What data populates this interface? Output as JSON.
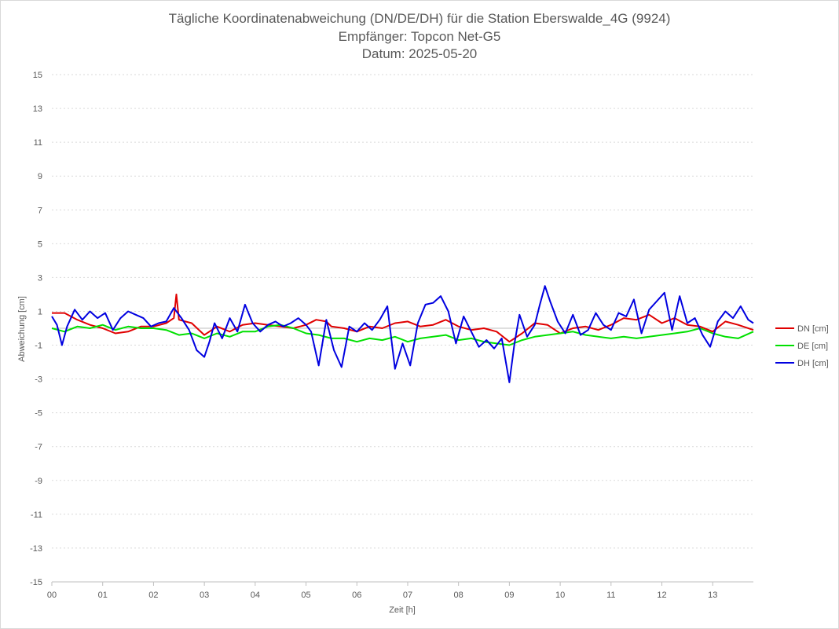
{
  "chart_data": {
    "type": "line",
    "title_lines": [
      "Tägliche Koordinatenabweichung (DN/DE/DH) für die Station Eberswalde_4G (9924)",
      "Empfänger: Topcon Net-G5",
      "Datum: 2025-05-20"
    ],
    "xlabel": "Zeit [h]",
    "ylabel": "Abweichung [cm]",
    "xlim": [
      0,
      13.8
    ],
    "ylim": [
      -15,
      15
    ],
    "x_ticks": [
      "00",
      "01",
      "02",
      "03",
      "04",
      "05",
      "06",
      "07",
      "08",
      "09",
      "10",
      "11",
      "12",
      "13"
    ],
    "y_ticks": [
      15,
      13,
      11,
      9,
      7,
      5,
      3,
      1,
      -1,
      -3,
      -5,
      -7,
      -9,
      -11,
      -13,
      -15
    ],
    "grid": true,
    "legend_position": "right",
    "series": [
      {
        "name": "DN [cm]",
        "color": "#e00000",
        "x": [
          0.0,
          0.25,
          0.5,
          0.75,
          1.0,
          1.25,
          1.5,
          1.75,
          2.0,
          2.25,
          2.4,
          2.45,
          2.5,
          2.75,
          3.0,
          3.25,
          3.5,
          3.75,
          4.0,
          4.25,
          4.5,
          4.75,
          5.0,
          5.2,
          5.4,
          5.5,
          5.75,
          6.0,
          6.25,
          6.5,
          6.75,
          7.0,
          7.25,
          7.5,
          7.75,
          8.0,
          8.25,
          8.5,
          8.75,
          9.0,
          9.25,
          9.5,
          9.75,
          10.0,
          10.25,
          10.5,
          10.75,
          11.0,
          11.25,
          11.5,
          11.75,
          12.0,
          12.25,
          12.5,
          12.75,
          13.0,
          13.25,
          13.5,
          13.8
        ],
        "y": [
          0.9,
          0.9,
          0.5,
          0.2,
          0.0,
          -0.3,
          -0.2,
          0.1,
          0.1,
          0.3,
          0.6,
          2.0,
          0.5,
          0.3,
          -0.4,
          0.1,
          -0.2,
          0.2,
          0.3,
          0.2,
          0.1,
          0.0,
          0.2,
          0.5,
          0.4,
          0.1,
          0.0,
          -0.2,
          0.1,
          0.0,
          0.3,
          0.4,
          0.1,
          0.2,
          0.5,
          0.1,
          -0.1,
          0.0,
          -0.2,
          -0.8,
          -0.3,
          0.3,
          0.2,
          -0.3,
          0.0,
          0.1,
          -0.1,
          0.2,
          0.6,
          0.5,
          0.8,
          0.3,
          0.6,
          0.2,
          0.1,
          -0.2,
          0.4,
          0.2,
          -0.1
        ]
      },
      {
        "name": "DE [cm]",
        "color": "#00e000",
        "x": [
          0.0,
          0.25,
          0.5,
          0.75,
          1.0,
          1.25,
          1.5,
          1.75,
          2.0,
          2.25,
          2.5,
          2.75,
          3.0,
          3.25,
          3.5,
          3.75,
          4.0,
          4.25,
          4.5,
          4.75,
          5.0,
          5.25,
          5.5,
          5.75,
          6.0,
          6.25,
          6.5,
          6.75,
          7.0,
          7.25,
          7.5,
          7.75,
          8.0,
          8.25,
          8.5,
          8.75,
          9.0,
          9.25,
          9.5,
          9.75,
          10.0,
          10.25,
          10.5,
          10.75,
          11.0,
          11.25,
          11.5,
          11.75,
          12.0,
          12.25,
          12.5,
          12.75,
          13.0,
          13.25,
          13.5,
          13.8
        ],
        "y": [
          0.0,
          -0.2,
          0.1,
          0.0,
          0.2,
          -0.1,
          0.1,
          0.0,
          0.0,
          -0.1,
          -0.4,
          -0.3,
          -0.6,
          -0.3,
          -0.5,
          -0.2,
          -0.2,
          0.1,
          0.2,
          0.0,
          -0.3,
          -0.4,
          -0.6,
          -0.6,
          -0.8,
          -0.6,
          -0.7,
          -0.5,
          -0.8,
          -0.6,
          -0.5,
          -0.4,
          -0.7,
          -0.6,
          -0.8,
          -0.9,
          -1.0,
          -0.7,
          -0.5,
          -0.4,
          -0.3,
          -0.2,
          -0.4,
          -0.5,
          -0.6,
          -0.5,
          -0.6,
          -0.5,
          -0.4,
          -0.3,
          -0.2,
          0.0,
          -0.3,
          -0.5,
          -0.6,
          -0.2
        ]
      },
      {
        "name": "DH [cm]",
        "color": "#0000e0",
        "x": [
          0.0,
          0.1,
          0.2,
          0.3,
          0.45,
          0.6,
          0.75,
          0.9,
          1.05,
          1.2,
          1.35,
          1.5,
          1.65,
          1.8,
          1.95,
          2.1,
          2.25,
          2.4,
          2.55,
          2.7,
          2.85,
          3.0,
          3.1,
          3.2,
          3.35,
          3.5,
          3.65,
          3.8,
          3.95,
          4.1,
          4.25,
          4.4,
          4.55,
          4.7,
          4.85,
          5.0,
          5.1,
          5.25,
          5.4,
          5.55,
          5.7,
          5.85,
          6.0,
          6.15,
          6.3,
          6.45,
          6.6,
          6.75,
          6.9,
          7.05,
          7.2,
          7.35,
          7.5,
          7.65,
          7.8,
          7.95,
          8.1,
          8.25,
          8.4,
          8.55,
          8.7,
          8.85,
          9.0,
          9.1,
          9.2,
          9.35,
          9.5,
          9.6,
          9.7,
          9.8,
          9.95,
          10.1,
          10.25,
          10.4,
          10.55,
          10.7,
          10.85,
          11.0,
          11.15,
          11.3,
          11.45,
          11.6,
          11.75,
          11.9,
          12.05,
          12.2,
          12.35,
          12.5,
          12.65,
          12.8,
          12.95,
          13.1,
          13.25,
          13.4,
          13.55,
          13.7,
          13.8
        ],
        "y": [
          0.7,
          0.2,
          -1.0,
          0.1,
          1.1,
          0.5,
          1.0,
          0.6,
          0.9,
          -0.1,
          0.6,
          1.0,
          0.8,
          0.6,
          0.1,
          0.3,
          0.4,
          1.2,
          0.6,
          -0.1,
          -1.3,
          -1.7,
          -0.8,
          0.3,
          -0.6,
          0.6,
          -0.2,
          1.4,
          0.3,
          -0.2,
          0.2,
          0.4,
          0.1,
          0.3,
          0.6,
          0.2,
          -0.2,
          -2.2,
          0.5,
          -1.3,
          -2.3,
          0.1,
          -0.2,
          0.3,
          -0.1,
          0.5,
          1.3,
          -2.4,
          -0.9,
          -2.2,
          0.3,
          1.4,
          1.5,
          1.9,
          1.0,
          -0.9,
          0.7,
          -0.2,
          -1.1,
          -0.7,
          -1.2,
          -0.6,
          -3.2,
          -0.9,
          0.8,
          -0.5,
          0.2,
          1.4,
          2.5,
          1.6,
          0.4,
          -0.3,
          0.8,
          -0.4,
          -0.1,
          0.9,
          0.2,
          -0.1,
          0.9,
          0.7,
          1.7,
          -0.3,
          1.1,
          1.6,
          2.1,
          -0.1,
          1.9,
          0.3,
          0.6,
          -0.4,
          -1.1,
          0.4,
          1.0,
          0.6,
          1.3,
          0.5,
          0.3
        ]
      }
    ]
  }
}
